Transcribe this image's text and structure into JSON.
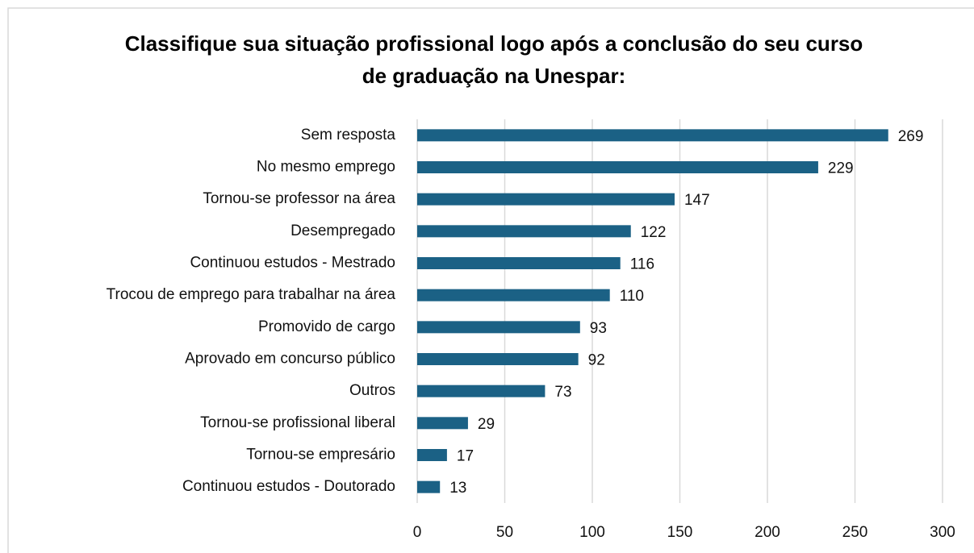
{
  "chart_data": {
    "type": "bar",
    "orientation": "horizontal",
    "title": "Classifique sua situação profissional logo após a conclusão do seu curso de graduação na Unespar:",
    "categories": [
      "Sem resposta",
      "No mesmo emprego",
      "Tornou-se professor na área",
      "Desempregado",
      "Continuou estudos - Mestrado",
      "Trocou de emprego para trabalhar na área",
      "Promovido de cargo",
      "Aprovado em concurso público",
      "Outros",
      "Tornou-se profissional liberal",
      "Tornou-se empresário",
      "Continuou estudos - Doutorado"
    ],
    "values": [
      269,
      229,
      147,
      122,
      116,
      110,
      93,
      92,
      73,
      29,
      17,
      13
    ],
    "color": "#1b6185",
    "xlim": [
      0,
      300
    ],
    "xticks": [
      0,
      50,
      100,
      150,
      200,
      250,
      300
    ],
    "grid": true
  }
}
